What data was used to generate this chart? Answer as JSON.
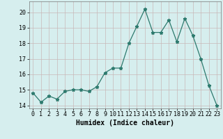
{
  "x": [
    0,
    1,
    2,
    3,
    4,
    5,
    6,
    7,
    8,
    9,
    10,
    11,
    12,
    13,
    14,
    15,
    16,
    17,
    18,
    19,
    20,
    21,
    22,
    23
  ],
  "y": [
    14.8,
    14.2,
    14.6,
    14.4,
    14.9,
    15.0,
    15.0,
    14.9,
    15.2,
    16.1,
    16.4,
    16.4,
    18.0,
    19.1,
    20.2,
    18.7,
    18.7,
    19.5,
    18.1,
    19.6,
    18.5,
    17.0,
    15.3,
    14.0
  ],
  "line_color": "#2d7a6e",
  "marker": "*",
  "bg_color": "#d6eeee",
  "grid_major_color": "#c8b8b8",
  "grid_minor_color": "#ddd0d0",
  "xlabel": "Humidex (Indice chaleur)",
  "xlabel_fontsize": 7,
  "tick_fontsize": 6,
  "ylim": [
    13.8,
    20.7
  ],
  "yticks": [
    14,
    15,
    16,
    17,
    18,
    19,
    20
  ],
  "xlim": [
    -0.5,
    23.5
  ]
}
